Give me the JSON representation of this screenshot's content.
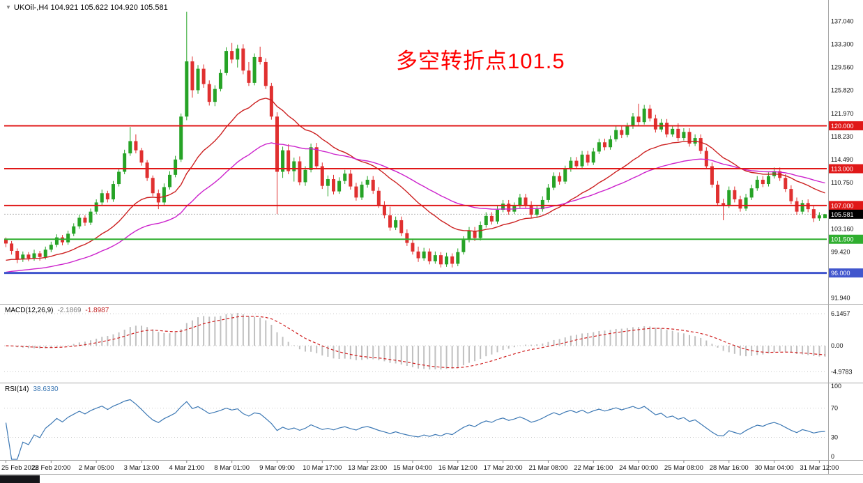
{
  "header": {
    "title": "UKOil-,H4 104.921 105.622 104.920 105.581"
  },
  "annotation": {
    "text": "多空转折点101.5",
    "color": "#ff0000"
  },
  "theme": {
    "up": "#26a326",
    "down": "#e03030",
    "macd_hist": "#c0c0c0",
    "macd_signal": "#d02020",
    "rsi": "#3c78b4",
    "axis_text": "#111111",
    "separator": "#a8a8a8",
    "bid_line": "#b8b8b8"
  },
  "macd_panel": {
    "label": "MACD(12,26,9)",
    "value_main": "-2.1869",
    "value_signal": "-1.8987",
    "axis": [
      {
        "text": "6.1457",
        "value": 6.1457
      },
      {
        "text": "0.00",
        "value": 0
      },
      {
        "text": "-4.9783",
        "value": -4.9783
      }
    ]
  },
  "rsi_panel": {
    "label": "RSI(14)",
    "value": "38.6330",
    "axis": [
      {
        "text": "100",
        "value": 100
      },
      {
        "text": "70",
        "value": 70
      },
      {
        "text": "30",
        "value": 30
      },
      {
        "text": "0",
        "value": 0
      }
    ],
    "levels": [
      70,
      30
    ]
  },
  "price_axis": {
    "labels": [
      {
        "text": "137.040",
        "value": 137.04
      },
      {
        "text": "133.300",
        "value": 133.3
      },
      {
        "text": "129.560",
        "value": 129.56
      },
      {
        "text": "125.820",
        "value": 125.82
      },
      {
        "text": "121.970",
        "value": 121.97
      },
      {
        "text": "118.230",
        "value": 118.23
      },
      {
        "text": "114.490",
        "value": 114.49
      },
      {
        "text": "110.750",
        "value": 110.75
      },
      {
        "text": "103.160",
        "value": 103.16
      },
      {
        "text": "99.420",
        "value": 99.42
      },
      {
        "text": "91.940",
        "value": 91.94
      }
    ],
    "tags": [
      {
        "text": "120.000",
        "value": 120.0,
        "bg": "#e01818"
      },
      {
        "text": "113.000",
        "value": 113.0,
        "bg": "#e01818"
      },
      {
        "text": "107.000",
        "value": 107.0,
        "bg": "#e01818"
      },
      {
        "text": "105.581",
        "value": 105.581,
        "bg": "#000000"
      },
      {
        "text": "101.500",
        "value": 101.5,
        "bg": "#2fae2f"
      },
      {
        "text": "96.000",
        "value": 96.0,
        "bg": "#4156cd"
      }
    ]
  },
  "chart_data": {
    "type": "candlestick",
    "symbol": "UKOil-",
    "timeframe": "H4",
    "title": "UKOil-,H4",
    "last_ohlc": {
      "open": 104.921,
      "high": 105.622,
      "low": 104.92,
      "close": 105.581
    },
    "y_range": [
      91.3,
      139.6
    ],
    "bid": 105.581,
    "x_label_every": 8,
    "x_labels": [
      "25 Feb 2022",
      "28 Feb 20:00",
      "2 Mar 05:00",
      "3 Mar 13:00",
      "4 Mar 21:00",
      "8 Mar 01:00",
      "9 Mar 09:00",
      "10 Mar 17:00",
      "13 Mar 23:00",
      "15 Mar 04:00",
      "16 Mar 12:00",
      "17 Mar 20:00",
      "21 Mar 08:00",
      "22 Mar 16:00",
      "24 Mar 00:00",
      "25 Mar 08:00",
      "28 Mar 16:00",
      "30 Mar 04:00",
      "31 Mar 12:00"
    ],
    "hlines": [
      {
        "value": 120.0,
        "label": "120.000",
        "color": "#e01818",
        "width": 2
      },
      {
        "value": 113.0,
        "label": "113.000",
        "color": "#e01818",
        "width": 2
      },
      {
        "value": 107.0,
        "label": "107.000",
        "color": "#e01818",
        "width": 2
      },
      {
        "value": 101.5,
        "label": "101.500",
        "color": "#2fae2f",
        "width": 2
      },
      {
        "value": 96.0,
        "label": "96.000",
        "color": "#4156cd",
        "width": 3
      }
    ],
    "moving_averages": [
      {
        "type": "ema",
        "period": 21,
        "color": "#cc2020",
        "seed": 97.8
      },
      {
        "type": "ema",
        "period": 45,
        "color": "#cc22cc",
        "seed": 95.9
      }
    ],
    "indicators": {
      "macd": {
        "fast": 12,
        "slow": 26,
        "signal": 9,
        "current_main": -2.1869,
        "current_signal": -1.8987
      },
      "rsi": {
        "period": 14,
        "current": 38.633,
        "levels": [
          70,
          30
        ]
      }
    },
    "ohlc": [
      [
        101.5,
        101.8,
        100.2,
        100.8
      ],
      [
        100.8,
        101.2,
        99.0,
        99.6
      ],
      [
        99.6,
        100.0,
        97.6,
        98.2
      ],
      [
        98.2,
        99.5,
        97.8,
        99.0
      ],
      [
        99.0,
        99.4,
        97.9,
        98.4
      ],
      [
        98.4,
        99.8,
        98.0,
        99.2
      ],
      [
        99.2,
        99.6,
        98.0,
        98.6
      ],
      [
        98.6,
        100.3,
        98.2,
        99.8
      ],
      [
        99.8,
        101.1,
        99.4,
        100.6
      ],
      [
        100.6,
        102.3,
        100.2,
        101.8
      ],
      [
        101.8,
        102.2,
        100.5,
        101.0
      ],
      [
        101.0,
        102.9,
        100.6,
        102.4
      ],
      [
        102.4,
        104.1,
        102.0,
        103.6
      ],
      [
        103.6,
        105.5,
        103.2,
        105.0
      ],
      [
        105.0,
        105.4,
        103.7,
        104.2
      ],
      [
        104.2,
        106.5,
        103.8,
        106.0
      ],
      [
        106.0,
        108.0,
        105.6,
        107.5
      ],
      [
        107.5,
        109.6,
        107.1,
        109.0
      ],
      [
        109.0,
        109.4,
        107.5,
        108.0
      ],
      [
        108.0,
        111.0,
        107.6,
        110.5
      ],
      [
        110.5,
        113.1,
        110.1,
        112.5
      ],
      [
        112.5,
        116.1,
        112.1,
        115.5
      ],
      [
        115.5,
        119.8,
        115.1,
        117.5
      ],
      [
        117.5,
        118.6,
        115.5,
        116.0
      ],
      [
        116.0,
        116.4,
        113.5,
        114.0
      ],
      [
        114.0,
        114.4,
        111.0,
        111.5
      ],
      [
        111.5,
        111.9,
        108.5,
        109.0
      ],
      [
        109.0,
        109.6,
        106.4,
        107.5
      ],
      [
        107.5,
        110.6,
        107.1,
        110.0
      ],
      [
        110.0,
        112.6,
        109.6,
        112.0
      ],
      [
        112.0,
        115.1,
        111.6,
        114.5
      ],
      [
        114.5,
        122.0,
        114.1,
        121.5
      ],
      [
        121.5,
        138.6,
        120.9,
        130.5
      ],
      [
        130.5,
        131.3,
        124.6,
        125.8
      ],
      [
        125.8,
        129.9,
        125.2,
        129.3
      ],
      [
        129.3,
        130.0,
        126.2,
        126.8
      ],
      [
        126.8,
        127.4,
        123.3,
        123.9
      ],
      [
        123.9,
        126.6,
        123.2,
        126.0
      ],
      [
        126.0,
        129.2,
        125.6,
        128.6
      ],
      [
        128.6,
        132.8,
        128.2,
        132.2
      ],
      [
        132.2,
        133.5,
        130.2,
        130.8
      ],
      [
        130.8,
        133.2,
        129.5,
        132.6
      ],
      [
        132.6,
        133.3,
        128.4,
        129.0
      ],
      [
        129.0,
        130.4,
        126.5,
        127.0
      ],
      [
        127.0,
        131.8,
        126.6,
        131.2
      ],
      [
        131.2,
        132.9,
        130.0,
        130.4
      ],
      [
        130.4,
        131.0,
        126.0,
        126.5
      ],
      [
        126.5,
        127.0,
        121.0,
        121.5
      ],
      [
        121.5,
        122.2,
        105.6,
        112.5
      ],
      [
        112.5,
        116.6,
        111.5,
        116.0
      ],
      [
        116.0,
        117.0,
        112.1,
        112.6
      ],
      [
        112.6,
        114.8,
        110.9,
        114.2
      ],
      [
        114.2,
        115.0,
        110.3,
        110.8
      ],
      [
        110.8,
        113.4,
        110.2,
        112.8
      ],
      [
        112.8,
        117.1,
        112.4,
        116.5
      ],
      [
        116.5,
        117.2,
        112.9,
        113.4
      ],
      [
        113.4,
        114.0,
        109.7,
        110.2
      ],
      [
        110.2,
        111.9,
        108.5,
        111.3
      ],
      [
        111.3,
        112.0,
        108.8,
        109.3
      ],
      [
        109.3,
        111.6,
        108.9,
        111.0
      ],
      [
        111.0,
        112.8,
        110.5,
        112.2
      ],
      [
        112.2,
        112.8,
        109.6,
        110.1
      ],
      [
        110.1,
        110.7,
        107.8,
        108.3
      ],
      [
        108.3,
        110.9,
        107.9,
        110.4
      ],
      [
        110.4,
        111.8,
        109.9,
        111.2
      ],
      [
        111.2,
        111.8,
        108.9,
        109.4
      ],
      [
        109.4,
        110.0,
        106.6,
        107.1
      ],
      [
        107.1,
        107.7,
        104.9,
        105.4
      ],
      [
        105.4,
        106.8,
        102.9,
        103.4
      ],
      [
        103.4,
        105.2,
        103.0,
        104.6
      ],
      [
        104.6,
        105.2,
        102.0,
        102.5
      ],
      [
        102.5,
        103.1,
        100.4,
        100.9
      ],
      [
        100.9,
        101.5,
        99.0,
        99.5
      ],
      [
        99.5,
        100.3,
        97.8,
        98.4
      ],
      [
        98.4,
        100.1,
        98.0,
        99.5
      ],
      [
        99.5,
        100.0,
        97.4,
        97.9
      ],
      [
        97.9,
        99.5,
        97.5,
        98.9
      ],
      [
        98.9,
        99.4,
        96.9,
        97.4
      ],
      [
        97.4,
        99.3,
        97.0,
        98.7
      ],
      [
        98.7,
        99.2,
        96.9,
        97.5
      ],
      [
        97.5,
        100.0,
        97.1,
        99.4
      ],
      [
        99.4,
        102.0,
        99.0,
        101.4
      ],
      [
        101.4,
        103.5,
        101.0,
        102.9
      ],
      [
        102.9,
        103.5,
        101.2,
        101.7
      ],
      [
        101.7,
        104.4,
        101.3,
        103.8
      ],
      [
        103.8,
        105.9,
        103.4,
        105.3
      ],
      [
        105.3,
        105.9,
        103.9,
        104.4
      ],
      [
        104.4,
        106.9,
        104.0,
        106.3
      ],
      [
        106.3,
        107.9,
        105.9,
        107.3
      ],
      [
        107.3,
        107.9,
        105.5,
        106.0
      ],
      [
        106.0,
        107.5,
        105.6,
        106.9
      ],
      [
        106.9,
        108.9,
        106.5,
        108.3
      ],
      [
        108.3,
        108.9,
        106.6,
        107.1
      ],
      [
        107.1,
        107.7,
        105.0,
        105.5
      ],
      [
        105.5,
        107.0,
        105.1,
        106.4
      ],
      [
        106.4,
        108.5,
        106.0,
        107.9
      ],
      [
        107.9,
        110.5,
        107.5,
        109.9
      ],
      [
        109.9,
        112.4,
        109.5,
        111.8
      ],
      [
        111.8,
        112.4,
        110.4,
        110.9
      ],
      [
        110.9,
        113.5,
        110.5,
        112.9
      ],
      [
        112.9,
        114.9,
        112.5,
        114.3
      ],
      [
        114.3,
        114.9,
        112.9,
        113.4
      ],
      [
        113.4,
        115.9,
        113.0,
        115.3
      ],
      [
        115.3,
        115.9,
        113.5,
        114.0
      ],
      [
        114.0,
        116.4,
        113.6,
        115.8
      ],
      [
        115.8,
        117.9,
        115.4,
        117.3
      ],
      [
        117.3,
        117.9,
        116.0,
        116.5
      ],
      [
        116.5,
        118.4,
        116.1,
        117.8
      ],
      [
        117.8,
        119.9,
        117.4,
        119.3
      ],
      [
        119.3,
        119.9,
        118.0,
        118.5
      ],
      [
        118.5,
        120.5,
        118.1,
        119.9
      ],
      [
        119.9,
        122.1,
        119.5,
        121.5
      ],
      [
        121.5,
        123.6,
        120.1,
        120.6
      ],
      [
        120.6,
        123.4,
        120.2,
        122.8
      ],
      [
        122.8,
        123.4,
        120.7,
        121.2
      ],
      [
        121.2,
        121.8,
        118.9,
        119.4
      ],
      [
        119.4,
        121.1,
        119.0,
        120.5
      ],
      [
        120.5,
        121.1,
        118.1,
        118.6
      ],
      [
        118.6,
        120.1,
        118.2,
        119.5
      ],
      [
        119.5,
        120.4,
        117.5,
        118.0
      ],
      [
        118.0,
        119.6,
        117.6,
        119.0
      ],
      [
        119.0,
        119.6,
        116.6,
        117.1
      ],
      [
        117.1,
        118.6,
        116.7,
        118.0
      ],
      [
        118.0,
        118.6,
        115.4,
        115.9
      ],
      [
        115.9,
        116.5,
        112.9,
        113.4
      ],
      [
        113.4,
        114.0,
        109.9,
        110.4
      ],
      [
        110.4,
        111.0,
        106.9,
        107.4
      ],
      [
        107.4,
        108.1,
        104.6,
        107.0
      ],
      [
        107.0,
        110.1,
        106.6,
        109.5
      ],
      [
        109.5,
        110.1,
        107.5,
        108.0
      ],
      [
        108.0,
        108.6,
        106.0,
        106.5
      ],
      [
        106.5,
        108.9,
        106.1,
        108.3
      ],
      [
        108.3,
        110.4,
        107.9,
        109.8
      ],
      [
        109.8,
        111.8,
        109.4,
        111.2
      ],
      [
        111.2,
        111.8,
        110.0,
        110.5
      ],
      [
        110.5,
        112.4,
        110.1,
        111.8
      ],
      [
        111.8,
        113.2,
        111.4,
        112.6
      ],
      [
        112.6,
        113.2,
        111.0,
        111.5
      ],
      [
        111.5,
        112.1,
        109.2,
        109.7
      ],
      [
        109.7,
        110.3,
        107.2,
        107.7
      ],
      [
        107.7,
        108.3,
        105.5,
        106.0
      ],
      [
        106.0,
        107.9,
        105.6,
        107.4
      ],
      [
        107.4,
        108.0,
        105.9,
        106.4
      ],
      [
        106.4,
        107.0,
        104.3,
        104.9
      ],
      [
        104.9,
        105.9,
        104.5,
        105.4
      ],
      [
        104.921,
        105.622,
        104.92,
        105.581
      ]
    ]
  }
}
